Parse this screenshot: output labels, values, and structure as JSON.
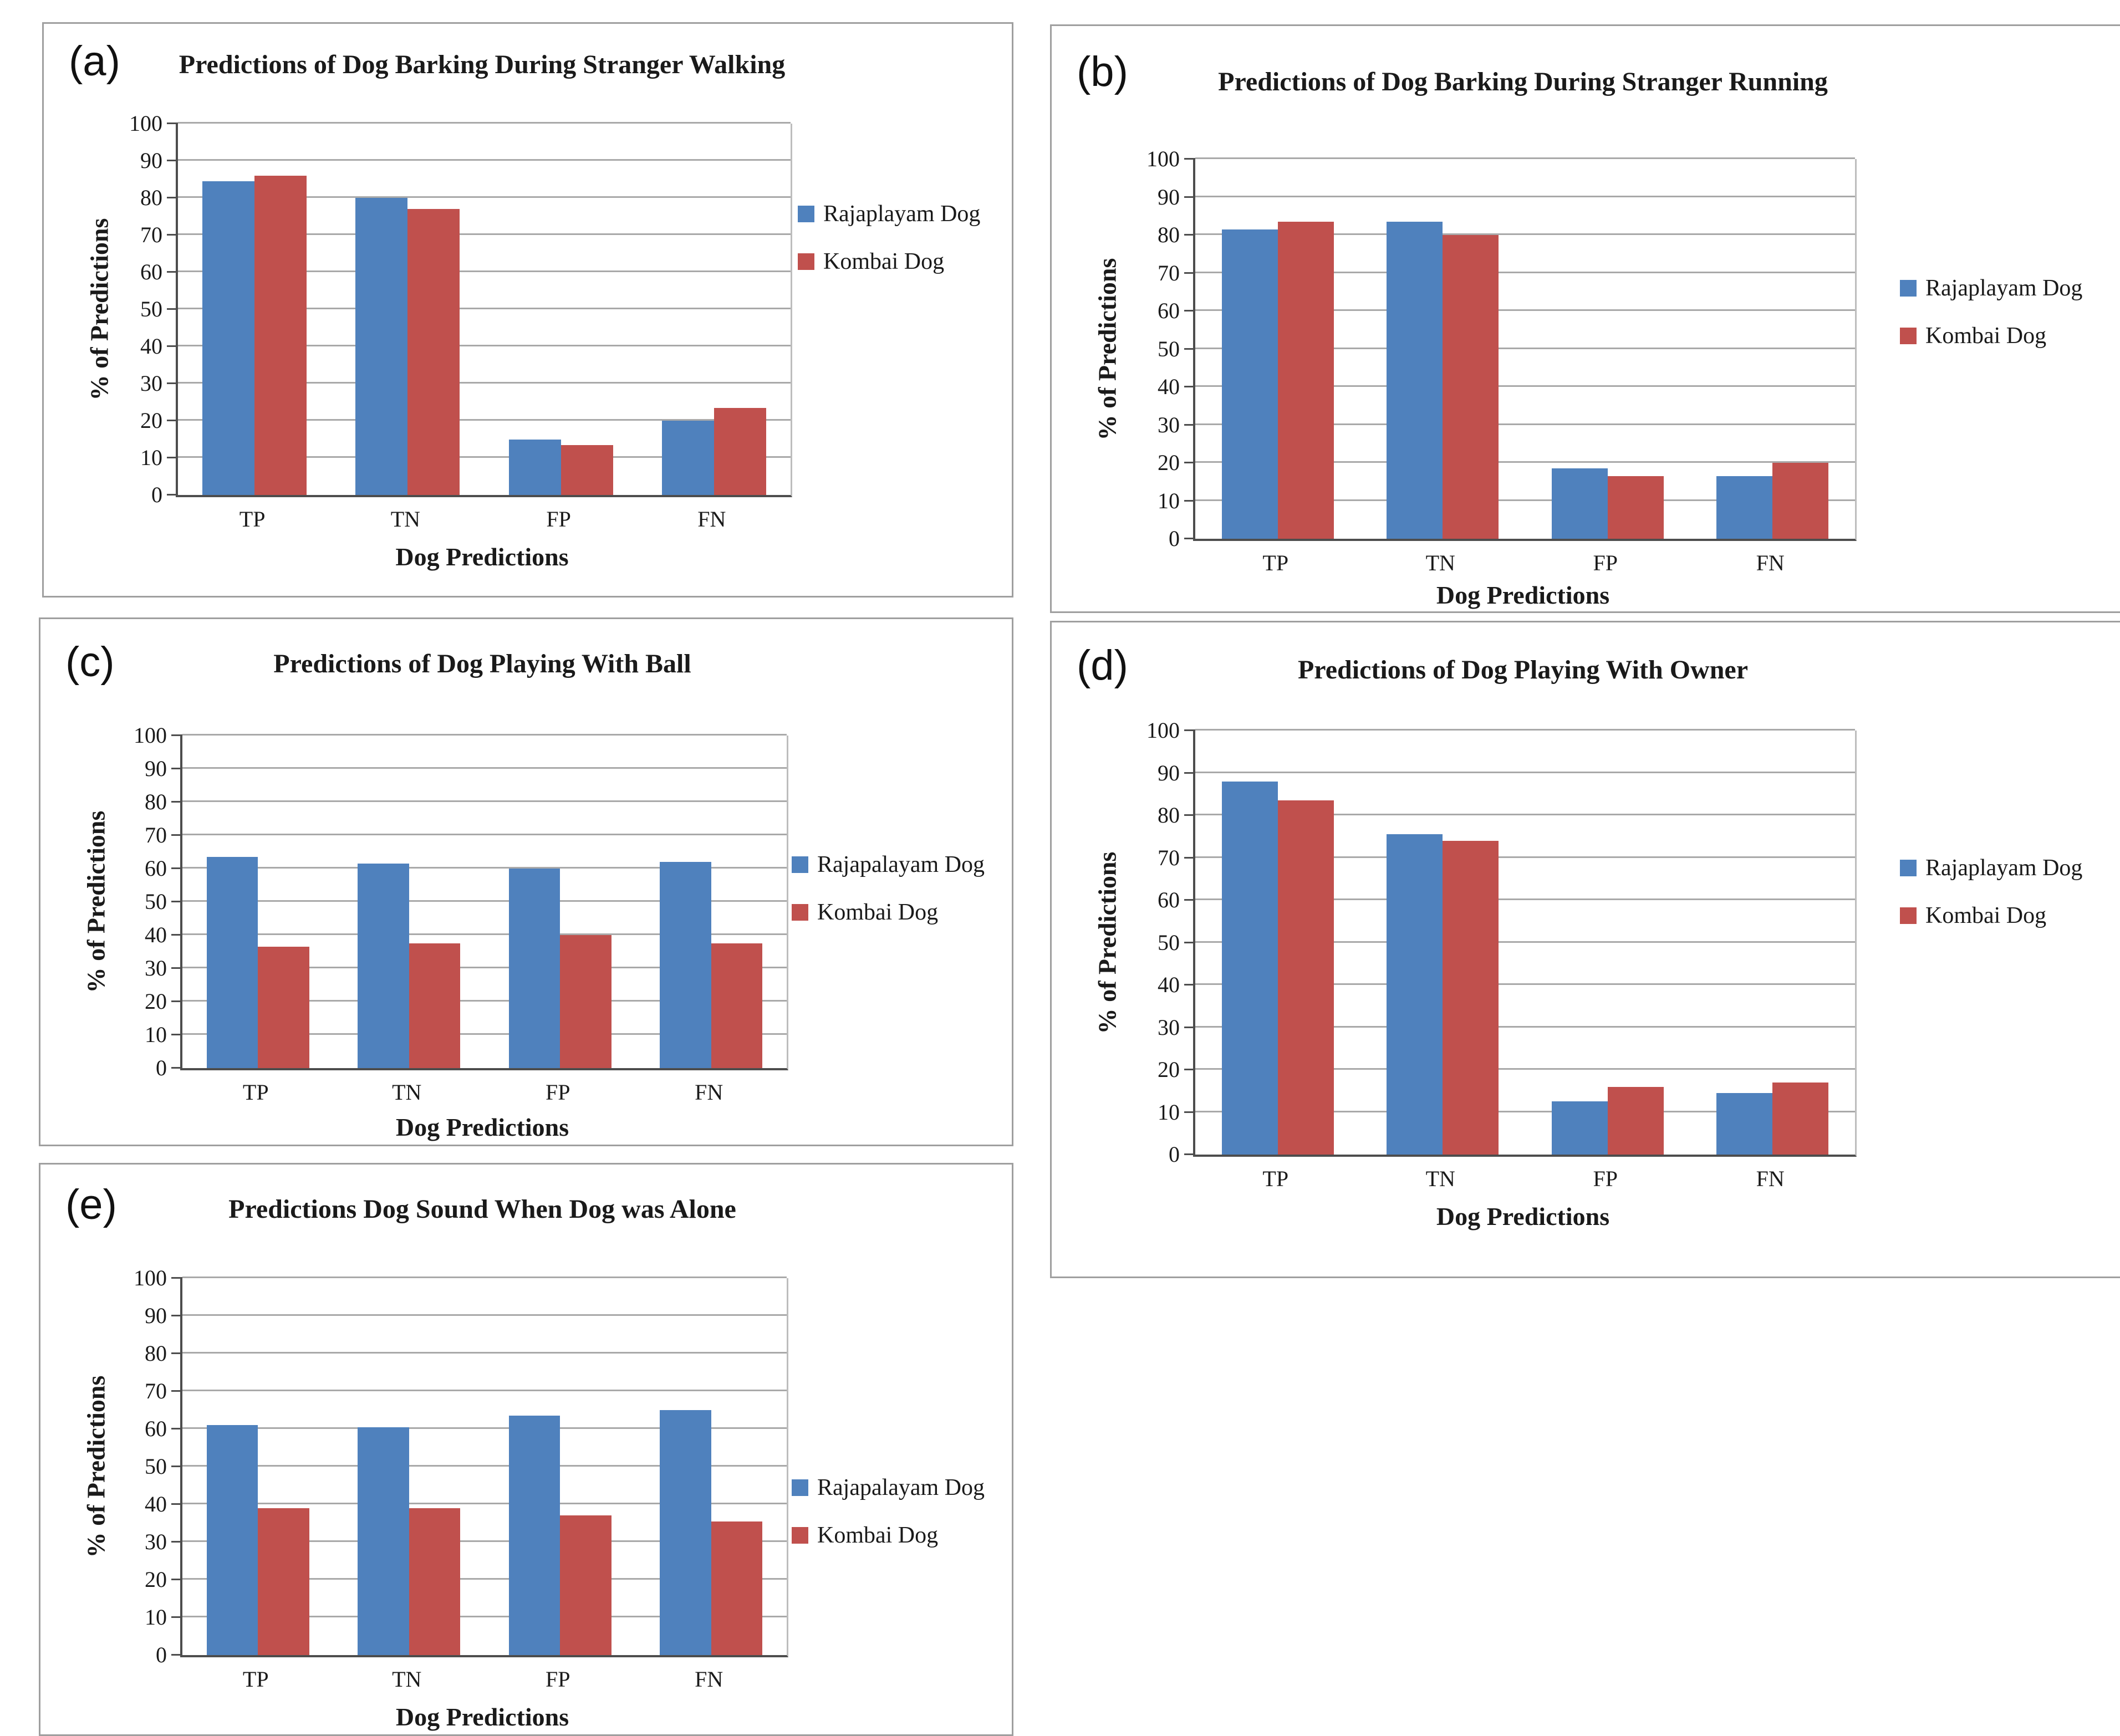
{
  "chart_data": [
    {
      "id": "a",
      "panel_letter": "(a)",
      "type": "bar",
      "title": "Predictions of Dog Barking During Stranger Walking",
      "xlabel": "Dog Predictions",
      "ylabel": "% of Predictions",
      "categories": [
        "TP",
        "TN",
        "FP",
        "FN"
      ],
      "series": [
        {
          "name": "Rajaplayam Dog",
          "color": "#4f81bd",
          "values": [
            84.5,
            80,
            15,
            20
          ]
        },
        {
          "name": "Kombai Dog",
          "color": "#c0504d",
          "values": [
            86,
            77,
            13.5,
            23.5
          ]
        }
      ],
      "ylim": [
        0,
        100
      ],
      "yticks": [
        0,
        10,
        20,
        30,
        40,
        50,
        60,
        70,
        80,
        90,
        100
      ],
      "grid": "horizontal",
      "legend_position": "right"
    },
    {
      "id": "b",
      "panel_letter": "(b)",
      "type": "bar",
      "title": "Predictions of Dog Barking During Stranger Running",
      "xlabel": "Dog Predictions",
      "ylabel": "% of Predictions",
      "categories": [
        "TP",
        "TN",
        "FP",
        "FN"
      ],
      "series": [
        {
          "name": "Rajaplayam Dog",
          "color": "#4f81bd",
          "values": [
            81.5,
            83.5,
            18.5,
            16.5
          ]
        },
        {
          "name": "Kombai Dog",
          "color": "#c0504d",
          "values": [
            83.5,
            80,
            16.5,
            20
          ]
        }
      ],
      "ylim": [
        0,
        100
      ],
      "yticks": [
        0,
        10,
        20,
        30,
        40,
        50,
        60,
        70,
        80,
        90,
        100
      ],
      "grid": "horizontal",
      "legend_position": "right"
    },
    {
      "id": "c",
      "panel_letter": "(c)",
      "type": "bar",
      "title": "Predictions of Dog Playing With Ball",
      "xlabel": "Dog Predictions",
      "ylabel": "% of Predictions",
      "categories": [
        "TP",
        "TN",
        "FP",
        "FN"
      ],
      "series": [
        {
          "name": "Rajapalayam Dog",
          "color": "#4f81bd",
          "values": [
            63.5,
            61.5,
            60,
            62
          ]
        },
        {
          "name": "Kombai Dog",
          "color": "#c0504d",
          "values": [
            36.5,
            37.5,
            40,
            37.5
          ]
        }
      ],
      "ylim": [
        0,
        100
      ],
      "yticks": [
        0,
        10,
        20,
        30,
        40,
        50,
        60,
        70,
        80,
        90,
        100
      ],
      "grid": "horizontal",
      "legend_position": "right"
    },
    {
      "id": "d",
      "panel_letter": "(d)",
      "type": "bar",
      "title": "Predictions of Dog Playing With Owner",
      "xlabel": "Dog Predictions",
      "ylabel": "% of Predictions",
      "categories": [
        "TP",
        "TN",
        "FP",
        "FN"
      ],
      "series": [
        {
          "name": "Rajaplayam Dog",
          "color": "#4f81bd",
          "values": [
            88,
            75.5,
            12.5,
            14.5
          ]
        },
        {
          "name": "Kombai Dog",
          "color": "#c0504d",
          "values": [
            83.5,
            74,
            16,
            17
          ]
        }
      ],
      "ylim": [
        0,
        100
      ],
      "yticks": [
        0,
        10,
        20,
        30,
        40,
        50,
        60,
        70,
        80,
        90,
        100
      ],
      "grid": "horizontal",
      "legend_position": "right"
    },
    {
      "id": "e",
      "panel_letter": "(e)",
      "type": "bar",
      "title": "Predictions Dog Sound When Dog was Alone",
      "xlabel": "Dog Predictions",
      "ylabel": "% of Predictions",
      "categories": [
        "TP",
        "TN",
        "FP",
        "FN"
      ],
      "series": [
        {
          "name": "Rajapalayam Dog",
          "color": "#4f81bd",
          "values": [
            61,
            60.5,
            63.5,
            65
          ]
        },
        {
          "name": "Kombai Dog",
          "color": "#c0504d",
          "values": [
            39,
            39,
            37,
            35.5
          ]
        }
      ],
      "ylim": [
        0,
        100
      ],
      "yticks": [
        0,
        10,
        20,
        30,
        40,
        50,
        60,
        70,
        80,
        90,
        100
      ],
      "grid": "horizontal",
      "legend_position": "right"
    }
  ]
}
